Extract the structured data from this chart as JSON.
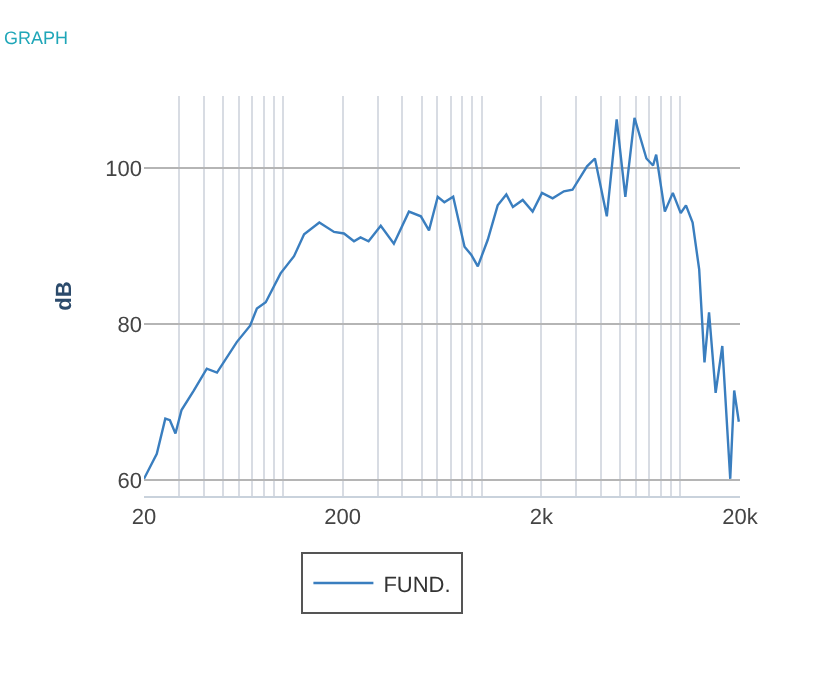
{
  "chart_data": {
    "type": "line",
    "title": "GRAPH",
    "ylabel": "dB",
    "x": [
      20,
      23.2,
      25.6,
      27,
      28.8,
      30.9,
      35.6,
      41.4,
      46.6,
      58.6,
      68.4,
      74,
      82,
      97.4,
      113.8,
      127.9,
      152.6,
      181,
      203,
      228,
      246,
      270,
      311,
      362,
      431,
      495,
      544,
      602,
      650,
      720,
      821,
      887,
      958,
      1075,
      1206,
      1333,
      1438,
      1612,
      1808,
      2015,
      2280,
      2598,
      2870,
      3396,
      3722,
      4272,
      4790,
      5295,
      5890,
      6760,
      7300,
      7570,
      8370,
      9180,
      10060,
      10690,
      11550,
      12460,
      13250,
      13970,
      15080,
      16290,
      17860,
      18700,
      19730
    ],
    "series": [
      {
        "name": "FUND.",
        "color": "#3a7ebf",
        "values": [
          60.2,
          63.4,
          67.9,
          67.7,
          66,
          69,
          71.5,
          74.3,
          73.8,
          77.7,
          79.8,
          82,
          82.8,
          86.5,
          88.7,
          91.5,
          93,
          91.8,
          91.6,
          90.6,
          91.1,
          90.6,
          92.6,
          90.3,
          94.4,
          93.8,
          92,
          96.3,
          95.6,
          96.3,
          89.9,
          88.9,
          87.4,
          90.8,
          95.2,
          96.6,
          95,
          95.9,
          94.4,
          96.8,
          96.1,
          97,
          97.2,
          100.2,
          101.2,
          93.8,
          106.2,
          96.3,
          106.4,
          101.2,
          100.3,
          101.7,
          94.4,
          96.8,
          94.2,
          95.2,
          93,
          87,
          75.1,
          81.5,
          71.2,
          77.2,
          60.2,
          71.5,
          67.5
        ]
      }
    ],
    "log": "x",
    "xlim": [
      20,
      20000
    ],
    "ylim": [
      58,
      109.2
    ],
    "xticks": [
      20,
      {
        "value": 30,
        "label": null
      },
      {
        "value": 40,
        "label": null
      },
      {
        "value": 50,
        "label": null
      },
      {
        "value": 60,
        "label": null
      },
      {
        "value": 70,
        "label": null
      },
      {
        "value": 80,
        "label": null
      },
      {
        "value": 90,
        "label": null
      },
      {
        "value": 100,
        "label": null
      },
      200,
      {
        "value": 300,
        "label": null
      },
      {
        "value": 400,
        "label": null
      },
      {
        "value": 500,
        "label": null
      },
      {
        "value": 600,
        "label": null
      },
      {
        "value": 700,
        "label": null
      },
      {
        "value": 800,
        "label": null
      },
      {
        "value": 900,
        "label": null
      },
      {
        "value": 1000,
        "label": null
      },
      {
        "value": 2000,
        "label": "2k"
      },
      {
        "value": 3000,
        "label": null
      },
      {
        "value": 4000,
        "label": null
      },
      {
        "value": 5000,
        "label": null
      },
      {
        "value": 6000,
        "label": null
      },
      {
        "value": 7000,
        "label": null
      },
      {
        "value": 8000,
        "label": null
      },
      {
        "value": 9000,
        "label": null
      },
      {
        "value": 10000,
        "label": null
      },
      {
        "value": 20000,
        "label": "20k"
      }
    ],
    "yticks": [
      60,
      80,
      100
    ],
    "grid": true,
    "legend": "bottom",
    "marker": "none",
    "line_style": "solid"
  }
}
